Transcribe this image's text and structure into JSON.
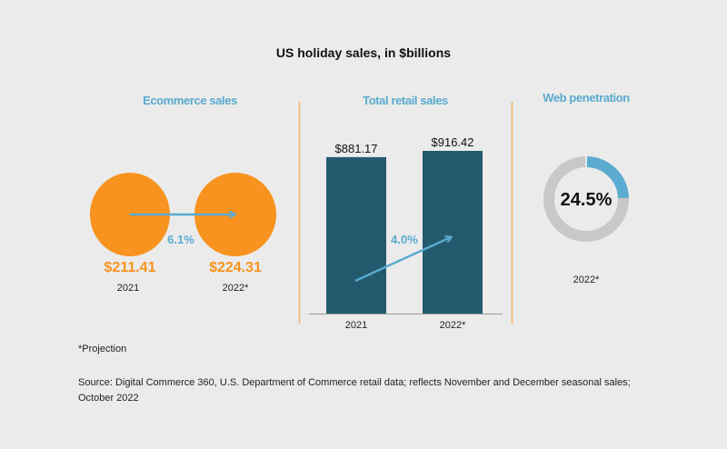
{
  "title": "US holiday sales, in $billions",
  "colors": {
    "background": "#ebebeb",
    "orange": "#f7931e",
    "blue": "#5aabcf",
    "bar": "#245a6e",
    "gray": "#c8c8c8",
    "divider": "#f2b36a"
  },
  "chart_data": [
    {
      "type": "bubble",
      "title": "Ecommerce sales",
      "categories": [
        "2021",
        "2022*"
      ],
      "values": [
        211.41,
        224.31
      ],
      "value_labels": [
        "$211.41",
        "$224.31"
      ],
      "growth_label": "6.1%"
    },
    {
      "type": "bar",
      "title": "Total retail sales",
      "categories": [
        "2021",
        "2022*"
      ],
      "values": [
        881.17,
        916.42
      ],
      "value_labels": [
        "$881.17",
        "$916.42"
      ],
      "growth_label": "4.0%",
      "grid": false
    },
    {
      "type": "pie",
      "title": "Web penetration",
      "donut": true,
      "value": 24.5,
      "value_label": "24.5%",
      "category": "2022*"
    }
  ],
  "footnote": "*Projection",
  "source_line1": "Source: Digital Commerce 360, U.S. Department of Commerce retail data; reflects November and December seasonal sales;",
  "source_line2": "October 2022"
}
